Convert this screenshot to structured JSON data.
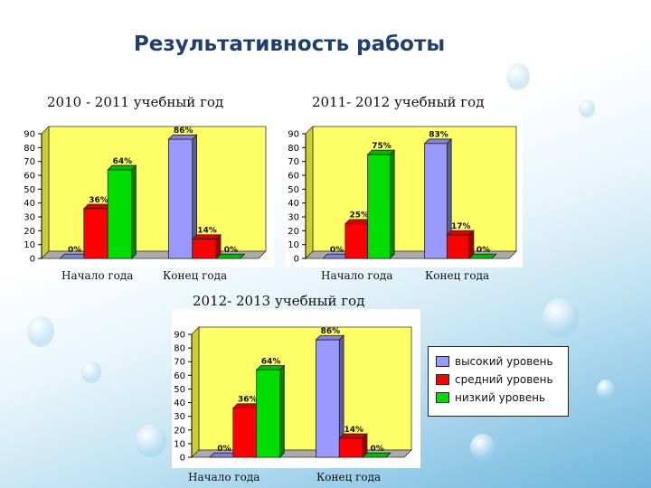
{
  "title": "Результативность работы",
  "colors": {
    "high": "#9999ff",
    "medium": "#ff0000",
    "low": "#00dd00",
    "plot_bg": "#ffff66",
    "wall_side": "#cccc33"
  },
  "legend": {
    "placement": "right",
    "items": [
      {
        "label": "высокий уровень",
        "color": "#9999ff"
      },
      {
        "label": "средний уровень",
        "color": "#ff0000"
      },
      {
        "label": "низкий уровень",
        "color": "#00dd00"
      }
    ]
  },
  "chart_data": [
    {
      "type": "bar",
      "title": "2010 - 2011 учебный год",
      "categories": [
        "Начало года",
        "Конец года"
      ],
      "ylim": [
        0,
        90
      ],
      "yticks": [
        0,
        10,
        20,
        30,
        40,
        50,
        60,
        70,
        80,
        90
      ],
      "grid": false,
      "series": [
        {
          "name": "высокий уровень",
          "values": [
            0,
            86
          ],
          "labels": [
            "0%",
            "86%"
          ]
        },
        {
          "name": "средний уровень",
          "values": [
            36,
            14
          ],
          "labels": [
            "36%",
            "14%"
          ]
        },
        {
          "name": "низкий уровень",
          "values": [
            64,
            0
          ],
          "labels": [
            "64%",
            "0%"
          ]
        }
      ]
    },
    {
      "type": "bar",
      "title": "2011- 2012 учебный год",
      "categories": [
        "Начало года",
        "Конец года"
      ],
      "ylim": [
        0,
        90
      ],
      "yticks": [
        0,
        10,
        20,
        30,
        40,
        50,
        60,
        70,
        80,
        90
      ],
      "grid": false,
      "series": [
        {
          "name": "высокий уровень",
          "values": [
            0,
            83
          ],
          "labels": [
            "0%",
            "83%"
          ]
        },
        {
          "name": "средний уровень",
          "values": [
            25,
            17
          ],
          "labels": [
            "25%",
            "17%"
          ]
        },
        {
          "name": "низкий уровень",
          "values": [
            75,
            0
          ],
          "labels": [
            "75%",
            "0%"
          ]
        }
      ]
    },
    {
      "type": "bar",
      "title": "2012- 2013 учебный год",
      "categories": [
        "Начало года",
        "Конец года"
      ],
      "ylim": [
        0,
        90
      ],
      "yticks": [
        0,
        10,
        20,
        30,
        40,
        50,
        60,
        70,
        80,
        90
      ],
      "grid": false,
      "series": [
        {
          "name": "высокий уровень",
          "values": [
            0,
            86
          ],
          "labels": [
            "0%",
            "86%"
          ]
        },
        {
          "name": "средний уровень",
          "values": [
            36,
            14
          ],
          "labels": [
            "36%",
            "14%"
          ]
        },
        {
          "name": "низкий уровень",
          "values": [
            64,
            0
          ],
          "labels": [
            "64%",
            "0%"
          ]
        }
      ]
    }
  ]
}
